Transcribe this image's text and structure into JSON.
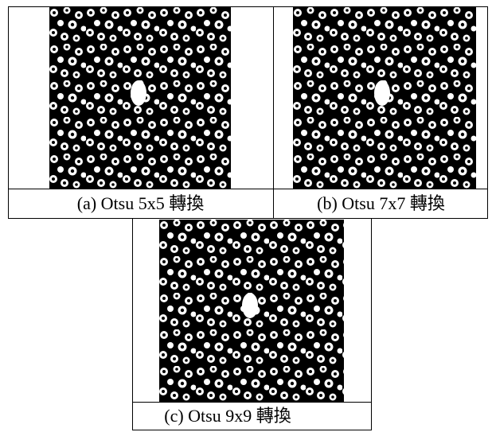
{
  "figures": [
    {
      "caption": "(a) Otsu 5x5 轉換"
    },
    {
      "caption": "(b) Otsu 7x7 轉換"
    },
    {
      "caption": "(c) Otsu 9x9 轉換"
    }
  ]
}
